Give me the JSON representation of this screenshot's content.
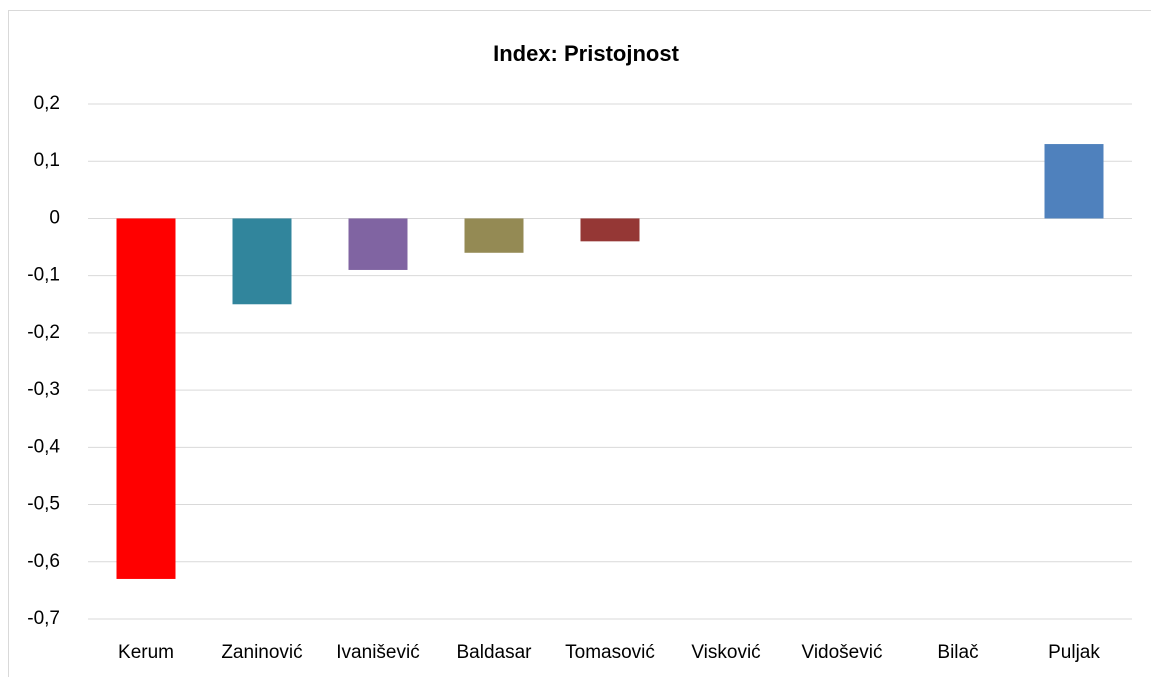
{
  "chart_data": {
    "type": "bar",
    "title": "Index: Pristojnost",
    "categories": [
      "Kerum",
      "Zaninović",
      "Ivanišević",
      "Baldasar",
      "Tomasović",
      "Visković",
      "Vidošević",
      "Bilač",
      "Puljak"
    ],
    "values": [
      -0.63,
      -0.15,
      -0.09,
      -0.06,
      -0.04,
      0,
      0,
      0,
      0.13
    ],
    "colors": [
      "#ff0000",
      "#31859c",
      "#8064a2",
      "#948a54",
      "#953735",
      null,
      null,
      null,
      "#4f81bd"
    ],
    "ylim": [
      -0.7,
      0.2
    ],
    "yticks": [
      {
        "value": 0.2,
        "label": "0,2"
      },
      {
        "value": 0.1,
        "label": "0,1"
      },
      0,
      {
        "value": -0.1,
        "label": "-0,1"
      },
      {
        "value": -0.2,
        "label": "-0,2"
      },
      {
        "value": -0.3,
        "label": "-0,3"
      },
      {
        "value": -0.4,
        "label": "-0,4"
      },
      {
        "value": -0.5,
        "label": "-0,5"
      },
      {
        "value": -0.6,
        "label": "-0,6"
      },
      {
        "value": -0.7,
        "label": "-0,7"
      }
    ],
    "grid": true
  }
}
